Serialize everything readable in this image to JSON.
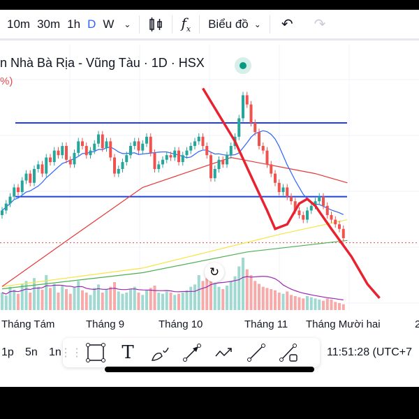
{
  "toolbar": {
    "intervals": [
      "10m",
      "30m",
      "1h",
      "D",
      "W"
    ],
    "active_interval": "D",
    "chart_type_label": "Biểu đồ"
  },
  "legend": {
    "title": "n Nhà Bà Rịa - Vũng Tàu · 1D · HSX",
    "change": "%)",
    "status_color": "#089981"
  },
  "xaxis": {
    "labels": [
      "Tháng Tám",
      "Tháng 9",
      "Tháng 10",
      "Tháng 11",
      "Tháng Mười hai",
      "2"
    ]
  },
  "bottom": {
    "ranges": [
      "1p",
      "5n",
      "1n"
    ],
    "time": "11:51:28 (UTC+7"
  },
  "colors": {
    "up": "#26a69a",
    "down": "#ef5350",
    "accent": "#2962ff"
  },
  "chart_data": {
    "type": "candlestick",
    "closes": [
      42,
      45,
      48,
      52,
      50,
      55,
      58,
      54,
      60,
      62,
      58,
      65,
      63,
      68,
      66,
      70,
      64,
      62,
      67,
      72,
      70,
      66,
      68,
      71,
      75,
      69,
      72,
      65,
      58,
      60,
      63,
      66,
      70,
      72,
      68,
      71,
      74,
      67,
      60,
      62,
      64,
      66,
      65,
      68,
      63,
      66,
      68,
      70,
      72,
      74,
      70,
      66,
      56,
      60,
      64,
      62,
      66,
      70,
      74,
      82,
      92,
      88,
      80,
      76,
      70,
      68,
      62,
      58,
      54,
      50,
      52,
      48,
      46,
      42,
      40,
      38,
      42,
      44,
      46,
      48,
      44,
      40,
      38,
      36,
      34,
      30
    ],
    "volumes": [
      30,
      25,
      40,
      35,
      28,
      45,
      50,
      30,
      55,
      40,
      35,
      60,
      38,
      45,
      30,
      42,
      36,
      28,
      40,
      50,
      34,
      30,
      26,
      38,
      44,
      30,
      36,
      40,
      48,
      32,
      28,
      30,
      36,
      40,
      30,
      26,
      34,
      38,
      42,
      30,
      28,
      32,
      30,
      26,
      28,
      30,
      34,
      40,
      44,
      60,
      50,
      55,
      70,
      45,
      40,
      36,
      42,
      50,
      58,
      75,
      90,
      70,
      60,
      50,
      45,
      40,
      38,
      36,
      34,
      30,
      28,
      32,
      26,
      24,
      22,
      20,
      24,
      22,
      20,
      18,
      16,
      20,
      18,
      14,
      12,
      10
    ],
    "ma_blue_period": 10,
    "ma_red": [
      [
        0,
        9
      ],
      [
        17,
        30
      ],
      [
        35,
        52
      ],
      [
        57,
        65
      ],
      [
        78,
        58
      ],
      [
        86,
        54
      ]
    ],
    "ma_yellow": [
      [
        0,
        9
      ],
      [
        35,
        17
      ],
      [
        70,
        32
      ],
      [
        86,
        38
      ]
    ],
    "ma_green": [
      [
        0,
        8
      ],
      [
        35,
        15
      ],
      [
        61,
        24
      ],
      [
        86,
        29
      ]
    ],
    "horizontal_levels": [
      80,
      48
    ],
    "last_price_line": 28,
    "annotation": [
      [
        50,
        95
      ],
      [
        58,
        72
      ],
      [
        62.5,
        55
      ],
      [
        66,
        42
      ],
      [
        68,
        34
      ],
      [
        71,
        36
      ],
      [
        74,
        45
      ],
      [
        76,
        47
      ],
      [
        78,
        44
      ],
      [
        82,
        34
      ],
      [
        87,
        22
      ],
      [
        91,
        10
      ],
      [
        94,
        4
      ]
    ],
    "x_labels": [
      "Tháng Tám",
      "Tháng 9",
      "Tháng 10",
      "Tháng 11",
      "Tháng Mười hai"
    ]
  }
}
